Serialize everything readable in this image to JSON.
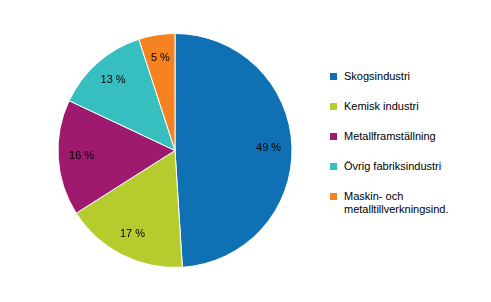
{
  "chart_data": {
    "type": "pie",
    "categories": [
      "Skogsindustri",
      "Kemisk industri",
      "Metallframställning",
      "Övrig fabriksindustri",
      "Maskin- och metalltillverkningsind."
    ],
    "values": [
      49,
      17,
      16,
      13,
      5
    ],
    "value_labels": [
      "49 %",
      "17 %",
      "16 %",
      "13 %",
      "5 %"
    ],
    "colors": [
      "#0f70b3",
      "#b6cb2e",
      "#9e1a6e",
      "#37bfbf",
      "#f5821f"
    ],
    "data_labels": true,
    "legend": "right"
  }
}
